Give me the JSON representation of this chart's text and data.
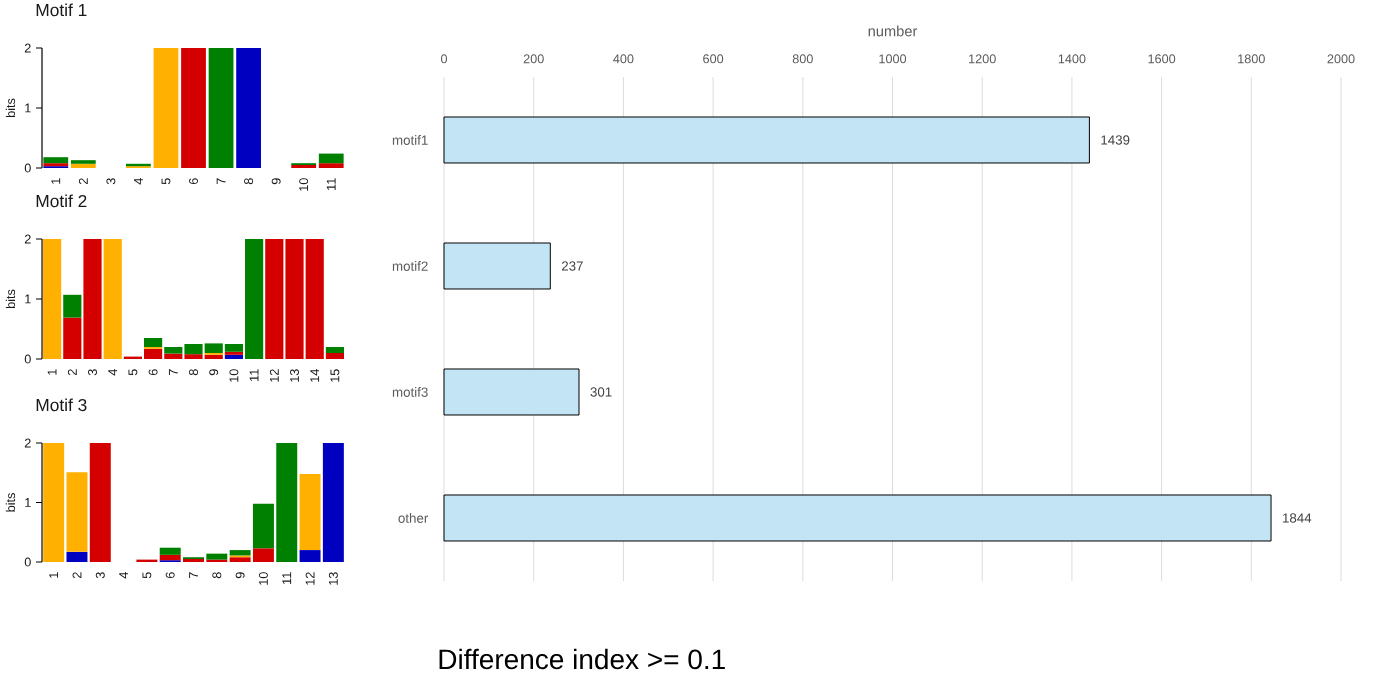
{
  "chart_data": [
    {
      "type": "bar",
      "title": "Motif 1",
      "ylabel": "bits",
      "categories": [
        "1",
        "2",
        "3",
        "4",
        "5",
        "6",
        "7",
        "8",
        "9",
        "10",
        "11"
      ],
      "stacked": true,
      "series": [
        {
          "color": "#0000c0",
          "values": [
            0.03,
            null,
            null,
            null,
            null,
            null,
            null,
            2.0,
            null,
            null,
            null
          ]
        },
        {
          "color": "#d40000",
          "values": [
            0.05,
            null,
            null,
            null,
            null,
            2.0,
            null,
            null,
            null,
            0.05,
            0.08
          ]
        },
        {
          "color": "#ffb000",
          "values": [
            null,
            0.07,
            null,
            0.03,
            2.0,
            null,
            null,
            null,
            null,
            null,
            null
          ]
        },
        {
          "color": "#008000",
          "values": [
            0.1,
            0.06,
            null,
            0.04,
            null,
            null,
            2.0,
            null,
            null,
            0.03,
            0.16
          ]
        }
      ],
      "ylim": [
        0,
        2
      ],
      "yticks": [
        0,
        1,
        2
      ]
    },
    {
      "type": "bar",
      "title": "Motif 2",
      "ylabel": "bits",
      "categories": [
        "1",
        "2",
        "3",
        "4",
        "5",
        "6",
        "7",
        "8",
        "9",
        "10",
        "11",
        "12",
        "13",
        "14",
        "15"
      ],
      "stacked": true,
      "series": [
        {
          "color": "#0000c0",
          "values": [
            null,
            null,
            null,
            null,
            null,
            null,
            null,
            null,
            null,
            0.07,
            null,
            null,
            null,
            null,
            null
          ]
        },
        {
          "color": "#d40000",
          "values": [
            null,
            0.69,
            2.0,
            null,
            0.04,
            0.17,
            0.09,
            0.08,
            0.07,
            0.05,
            null,
            2.0,
            2.0,
            2.0,
            0.1
          ]
        },
        {
          "color": "#ffb000",
          "values": [
            2.0,
            null,
            null,
            2.0,
            null,
            0.03,
            null,
            null,
            0.03,
            null,
            null,
            null,
            null,
            null,
            null
          ]
        },
        {
          "color": "#008000",
          "values": [
            null,
            0.38,
            null,
            null,
            null,
            0.15,
            0.11,
            0.17,
            0.16,
            0.13,
            2.0,
            null,
            null,
            null,
            0.1
          ]
        }
      ],
      "ylim": [
        0,
        2
      ],
      "yticks": [
        0,
        1,
        2
      ]
    },
    {
      "type": "bar",
      "title": "Motif 3",
      "ylabel": "bits",
      "categories": [
        "1",
        "2",
        "3",
        "4",
        "5",
        "6",
        "7",
        "8",
        "9",
        "10",
        "11",
        "12",
        "13"
      ],
      "stacked": true,
      "series": [
        {
          "color": "#0000c0",
          "values": [
            null,
            0.17,
            null,
            null,
            null,
            0.03,
            null,
            null,
            null,
            null,
            null,
            0.2,
            2.0
          ]
        },
        {
          "color": "#d40000",
          "values": [
            null,
            null,
            2.0,
            null,
            0.04,
            0.09,
            0.05,
            0.04,
            0.08,
            0.23,
            null,
            null,
            null
          ]
        },
        {
          "color": "#ffb000",
          "values": [
            2.0,
            1.34,
            null,
            null,
            null,
            null,
            null,
            null,
            0.03,
            null,
            null,
            1.28,
            null
          ]
        },
        {
          "color": "#008000",
          "values": [
            null,
            null,
            null,
            null,
            null,
            0.12,
            0.03,
            0.1,
            0.09,
            0.75,
            2.0,
            null,
            null
          ]
        }
      ],
      "ylim": [
        0,
        2
      ],
      "yticks": [
        0,
        1,
        2
      ]
    },
    {
      "type": "bar",
      "orientation": "horizontal",
      "xlabel": "number",
      "categories": [
        "motif1",
        "motif2",
        "motif3",
        "other"
      ],
      "values": [
        1439,
        237,
        301,
        1844
      ],
      "color": "#c2e4f4",
      "xlim": [
        0,
        2000
      ],
      "xticks": [
        0,
        200,
        400,
        600,
        800,
        1000,
        1200,
        1400,
        1600,
        1800,
        2000
      ],
      "grid": "x",
      "data_labels": true,
      "annotations": [
        "Difference index >= 0.1"
      ]
    }
  ]
}
